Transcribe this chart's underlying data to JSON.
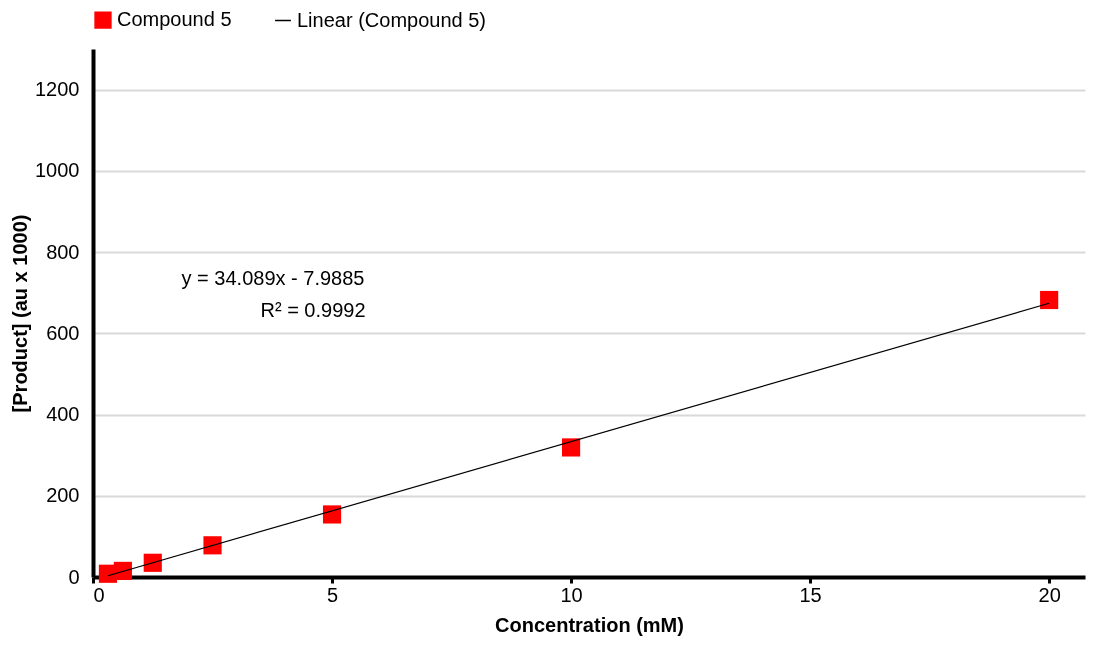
{
  "chart_data": {
    "type": "scatter",
    "xlabel": "Concentration (mM)",
    "ylabel": "[Product] (au x 1000)",
    "x": [
      0.3125,
      0.625,
      1.25,
      2.5,
      5,
      10,
      20
    ],
    "series": [
      {
        "name": "Compound 5",
        "color": "#ff0000",
        "type": "scatter",
        "marker": "square",
        "values": [
          8,
          15,
          35,
          78,
          154,
          319,
          682
        ]
      },
      {
        "name": "Linear (Compound 5)",
        "color": "#000000",
        "type": "line",
        "marker": "none",
        "line_style": "solid",
        "x": [
          0.3125,
          20
        ],
        "values": [
          3,
          674
        ]
      }
    ],
    "annotations": [
      "y = 34.089x - 7.9885",
      "R² = 0.9992"
    ],
    "xlim": [
      0,
      20.75
    ],
    "ylim": [
      0,
      1300
    ],
    "xticks": [
      0,
      5,
      10,
      15,
      20
    ],
    "yticks": [
      0,
      200,
      400,
      600,
      800,
      1000,
      1200
    ],
    "grid": "y",
    "legend": "top"
  }
}
